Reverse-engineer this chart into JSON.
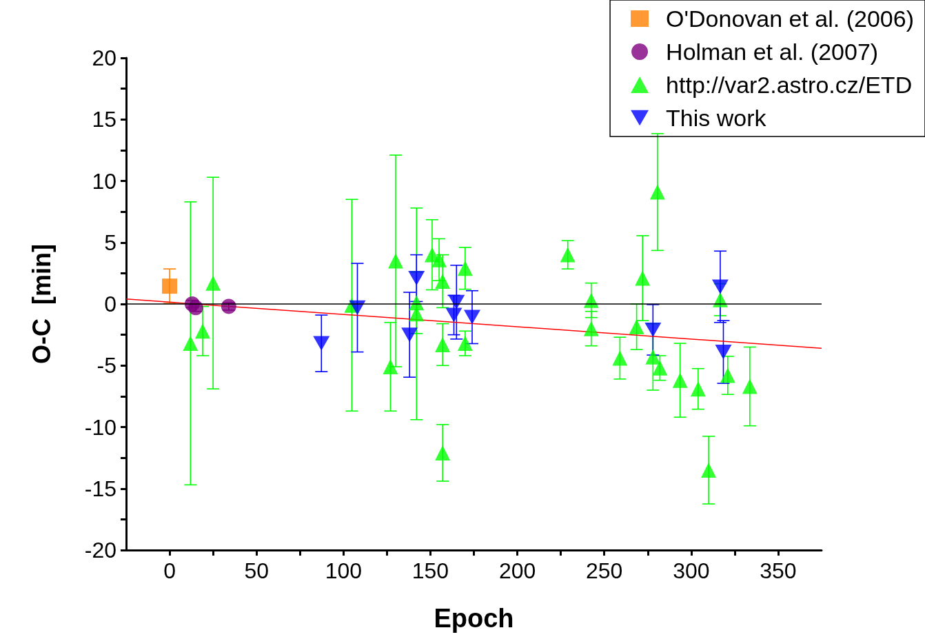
{
  "chart_data": {
    "type": "scatter",
    "xlabel": "Epoch",
    "ylabel": "O-C  [min]",
    "xlim": [
      -25,
      375
    ],
    "ylim": [
      -20,
      20
    ],
    "xticks": [
      0,
      {
        "value": 25,
        "label": null
      },
      50,
      {
        "value": 75,
        "label": null
      },
      100,
      {
        "value": 125,
        "label": null
      },
      150,
      {
        "value": 175,
        "label": null
      },
      200,
      {
        "value": 225,
        "label": null
      },
      250,
      {
        "value": 275,
        "label": null
      },
      300,
      {
        "value": 325,
        "label": null
      },
      350
    ],
    "yticks": [
      -20,
      {
        "value": -17.5,
        "label": null
      },
      -15,
      {
        "value": -12.5,
        "label": null
      },
      -10,
      {
        "value": -7.5,
        "label": null
      },
      -5,
      {
        "value": -2.5,
        "label": null
      },
      0,
      {
        "value": 2.5,
        "label": null
      },
      5,
      {
        "value": 7.5,
        "label": null
      },
      10,
      {
        "value": 12.5,
        "label": null
      },
      15,
      {
        "value": 17.5,
        "label": null
      },
      20
    ],
    "grid": false,
    "legend": "top right",
    "ref_lines": [
      {
        "axis": "y",
        "value": 0,
        "color": "#000000"
      }
    ],
    "series": [
      {
        "name": "O'Donovan et al. (2006)",
        "color": "#ff8000",
        "marker": "square",
        "x": [
          0
        ],
        "values": [
          1.45
        ],
        "errors": [
          1.4
        ]
      },
      {
        "name": "Holman et al. (2007)",
        "color": "#800080",
        "marker": "circle",
        "x": [
          13,
          15,
          34
        ],
        "values": [
          0,
          -0.3,
          -0.2
        ],
        "errors": [
          0.3,
          0.3,
          0.3
        ]
      },
      {
        "name": "http://var2.astro.cz/ETD",
        "color": "#00ff00",
        "marker": "triangle",
        "x": [
          12,
          19,
          25,
          104.8,
          127,
          130,
          142,
          142,
          151,
          155,
          157,
          157,
          157,
          170,
          170,
          229,
          242.5,
          242.5,
          259,
          268.6,
          272,
          278,
          280.6,
          282,
          293.6,
          304,
          310,
          316.7,
          321,
          333.7
        ],
        "values": [
          -3.2,
          -2.2,
          1.7,
          -0.1,
          -5.1,
          3.5,
          0.1,
          -0.8,
          4.0,
          3.6,
          1.85,
          -3.3,
          -12.1,
          2.9,
          -3.2,
          4.0,
          0.3,
          -2.0,
          -4.4,
          -1.85,
          2.1,
          -4.3,
          9.1,
          -5.2,
          -6.2,
          -6.9,
          -13.5,
          0.35,
          -5.8,
          -6.7
        ],
        "errors": [
          11.5,
          2,
          8.6,
          8.6,
          3.6,
          8.6,
          2.5,
          8.6,
          2.85,
          1.7,
          2.15,
          1.7,
          2.3,
          1.7,
          1.0,
          1.15,
          1.4,
          1.4,
          1.7,
          1.85,
          3.45,
          2.7,
          4.75,
          1.0,
          3.0,
          1.65,
          2.75,
          1.3,
          1.55,
          3.2
        ]
      },
      {
        "name": "This work",
        "color": "#0000ff",
        "marker": "triangle-down",
        "x": [
          87.3,
          108,
          138,
          142,
          163.5,
          165,
          174,
          278,
          316.7,
          318.5
        ],
        "values": [
          -3.2,
          -0.3,
          -2.5,
          2.1,
          -0.9,
          0.15,
          -1.07,
          -2.1,
          1.4,
          -3.9
        ],
        "errors": [
          2.3,
          3.6,
          3.45,
          1.9,
          1.6,
          3.0,
          2.15,
          2.05,
          2.9,
          2.55
        ]
      },
      {
        "type": "line",
        "color": "#ff0000",
        "marker": "none",
        "x": [
          -25,
          375
        ],
        "values": [
          0.4,
          -3.6
        ]
      }
    ]
  }
}
